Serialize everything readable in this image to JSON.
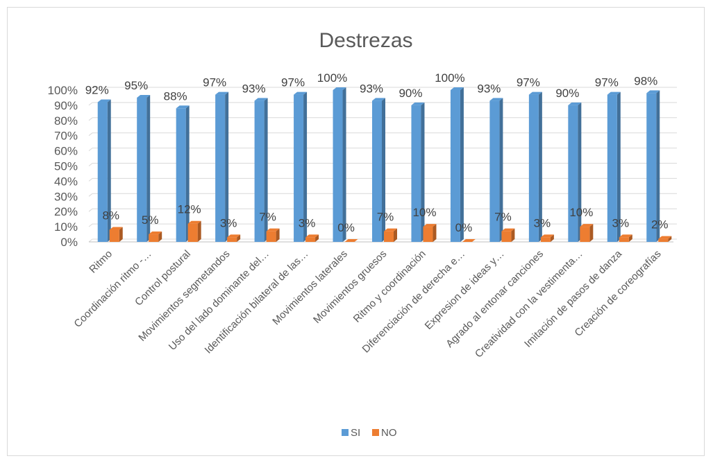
{
  "chart_data": {
    "type": "bar",
    "title": "Destrezas",
    "categories": [
      "Ritmo",
      "Coordinación ritmo -…",
      "Control postural",
      "Movimientos segmetandos",
      "Uso del lado dominante del…",
      "Identificación bilateral de las…",
      "Movimientos laterales",
      "Movimientos gruesos",
      "Ritmo y coordinación",
      "Diferenciación de derecha e…",
      "Expresion de ideas y…",
      "Agrado al entonar canciones",
      "Creatividad con la vestimenta…",
      "Imitación de pasos de danza",
      "Creación de coreografías"
    ],
    "series": [
      {
        "name": "SI",
        "color": "#5b9bd5",
        "values": [
          92,
          95,
          88,
          97,
          93,
          97,
          100,
          93,
          90,
          100,
          93,
          97,
          90,
          97,
          98
        ],
        "labels": [
          "92%",
          "95%",
          "88%",
          "97%",
          "93%",
          "97%",
          "100%",
          "93%",
          "90%",
          "100%",
          "93%",
          "97%",
          "90%",
          "97%",
          "98%"
        ]
      },
      {
        "name": "NO",
        "color": "#ed7d31",
        "values": [
          8,
          5,
          12,
          3,
          7,
          3,
          0,
          7,
          10,
          0,
          7,
          3,
          10,
          3,
          2
        ],
        "labels": [
          "8%",
          "5%",
          "12%",
          "3%",
          "7%",
          "3%",
          "0%",
          "7%",
          "10%",
          "0%",
          "7%",
          "3%",
          "10%",
          "3%",
          "2%"
        ]
      }
    ],
    "ylim": [
      0,
      100
    ],
    "y_ticks": [
      "0%",
      "10%",
      "20%",
      "30%",
      "40%",
      "50%",
      "60%",
      "70%",
      "80%",
      "90%",
      "100%"
    ],
    "grid": true,
    "legend_position": "bottom"
  }
}
